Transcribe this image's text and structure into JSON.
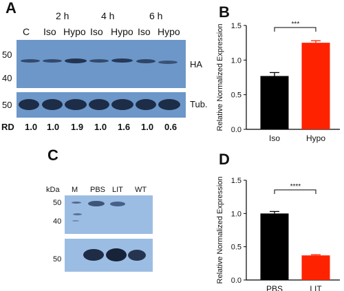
{
  "panel_a": {
    "label": "A",
    "timepoints": [
      "2 h",
      "4 h",
      "6 h"
    ],
    "lanes": [
      "C",
      "Iso",
      "Hypo",
      "Iso",
      "Hypo",
      "Iso",
      "Hypo"
    ],
    "mw_top": [
      "50",
      "40"
    ],
    "mw_bottom": "50",
    "right_top": "HA",
    "right_bottom": "Tub.",
    "rd_label": "RD",
    "rd_values": [
      "1.0",
      "1.0",
      "1.9",
      "1.0",
      "1.6",
      "1.0",
      "0.6"
    ],
    "band_relative_intensity": [
      1.0,
      1.0,
      1.9,
      1.0,
      1.6,
      1.0,
      0.6
    ]
  },
  "panel_c": {
    "label": "C",
    "kda": "kDa",
    "lanes": [
      "M",
      "PBS",
      "LIT",
      "WT"
    ],
    "mw_top": [
      "50",
      "40"
    ],
    "mw_bottom": "50"
  },
  "chart_data": [
    {
      "panel": "B",
      "type": "bar",
      "categories": [
        "Iso",
        "Hypo"
      ],
      "values": [
        0.77,
        1.25
      ],
      "errors": [
        0.05,
        0.03
      ],
      "colors": [
        "#000000",
        "#ff2200"
      ],
      "ylabel": "Relative Normalized Expression",
      "ylim": [
        0,
        1.5
      ],
      "yticks": [
        "0.0",
        "0.5",
        "1.0",
        "1.5"
      ],
      "significance": "***"
    },
    {
      "panel": "D",
      "type": "bar",
      "categories": [
        "PBS",
        "LIT"
      ],
      "values": [
        1.0,
        0.37
      ],
      "errors": [
        0.03,
        0.01
      ],
      "colors": [
        "#000000",
        "#ff2200"
      ],
      "ylabel": "Relative Normalized Expression",
      "ylim": [
        0,
        1.5
      ],
      "yticks": [
        "0.0",
        "0.5",
        "1.0",
        "1.5"
      ],
      "significance": "****"
    }
  ]
}
